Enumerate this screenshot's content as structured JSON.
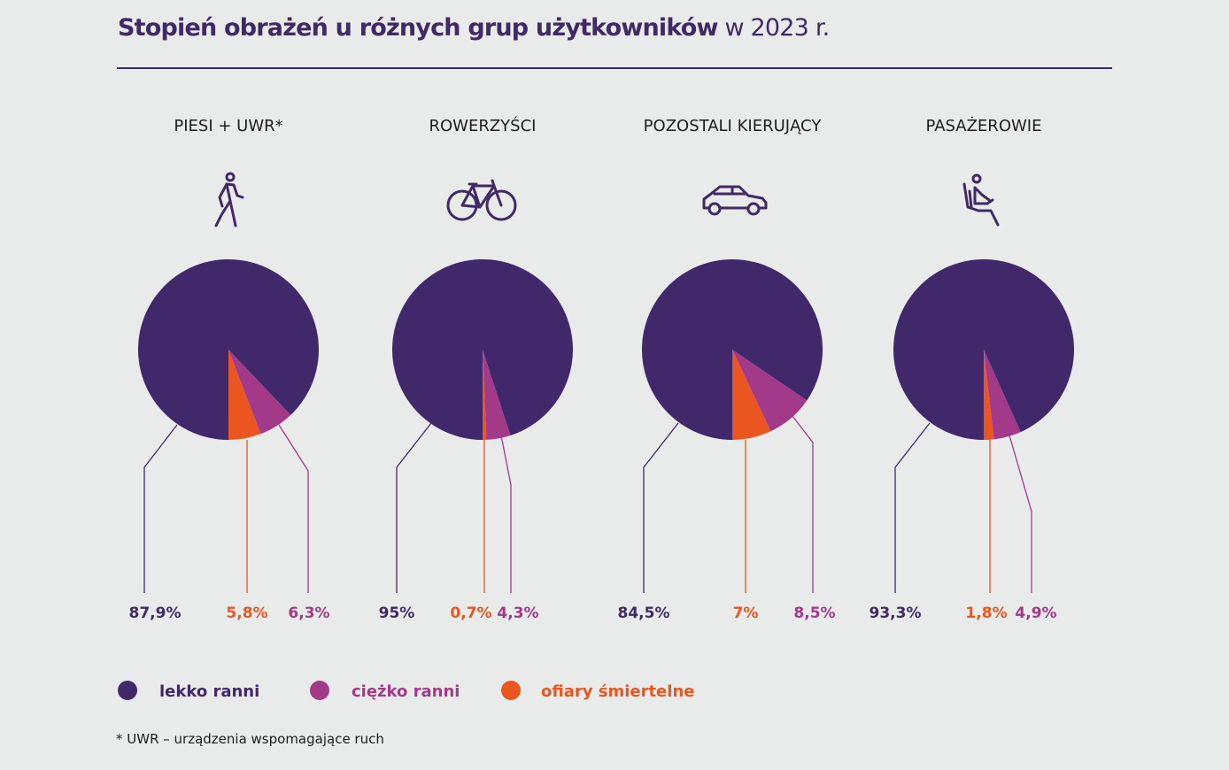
{
  "title": {
    "bold": "Stopień obrażeń u różnych grup użytkowników",
    "light": "w 2023 r."
  },
  "colors": {
    "lekko_ranni": "#40286a",
    "ciezko_ranni": "#a33a89",
    "ofiary_smiertelne": "#ea5520",
    "text": "#3f2a66"
  },
  "chart_data": {
    "type": "pie",
    "title": "Stopień obrażeń u różnych grup użytkowników w 2023 r.",
    "legend": [
      "lekko ranni",
      "ciężko ranni",
      "ofiary śmiertelne"
    ],
    "legend_placement": "bottom-left",
    "groups": [
      {
        "name": "PIESI + UWR*",
        "icon": "pedestrian-icon",
        "labels": [
          "87,9%",
          "5,8%",
          "6,3%"
        ],
        "values": {
          "lekko ranni": 87.9,
          "ofiary śmiertelne": 5.8,
          "ciężko ranni": 6.3
        }
      },
      {
        "name": "ROWERZYŚCI",
        "icon": "bicycle-icon",
        "labels": [
          "95%",
          "0,7%",
          "4,3%"
        ],
        "values": {
          "lekko ranni": 95,
          "ofiary śmiertelne": 0.7,
          "ciężko ranni": 4.3
        }
      },
      {
        "name": "POZOSTALI KIERUJĄCY",
        "icon": "car-icon",
        "labels": [
          "84,5%",
          "7%",
          "8,5%"
        ],
        "values": {
          "lekko ranni": 84.5,
          "ofiary śmiertelne": 7,
          "ciężko ranni": 8.5
        }
      },
      {
        "name": "PASAŻEROWIE",
        "icon": "passenger-icon",
        "labels": [
          "93,3%",
          "1,8%",
          "4,9%"
        ],
        "values": {
          "lekko ranni": 93.3,
          "ofiary śmiertelne": 1.8,
          "ciężko ranni": 4.9
        }
      }
    ]
  },
  "footnote": "* UWR – urządzenia wspomagające ruch"
}
